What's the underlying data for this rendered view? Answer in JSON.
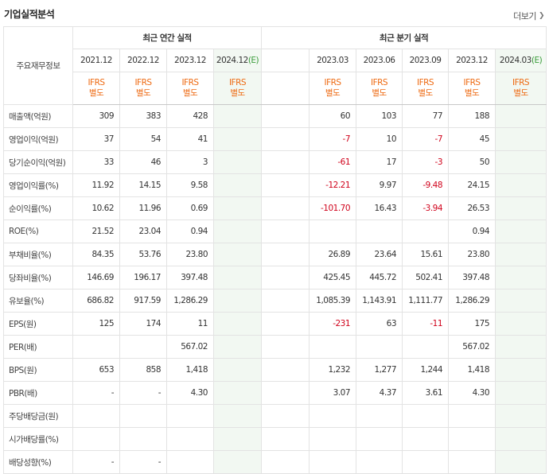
{
  "title": "기업실적분석",
  "more_label": "더보기",
  "header": {
    "row_label": "주요재무정보",
    "annual_group": "최근 연간 실적",
    "quarter_group": "최근 분기 실적",
    "annual_periods": [
      "2021.12",
      "2022.12",
      "2023.12",
      "2024.12"
    ],
    "annual_est_mark": "(E)",
    "quarter_periods": [
      "2023.03",
      "2023.06",
      "2023.09",
      "2023.12",
      "2024.03"
    ],
    "quarter_est_mark": "(E)",
    "std_line1": "IFRS",
    "std_line2": "별도"
  },
  "rows": [
    {
      "label": "매출액(억원)",
      "annual": [
        "309",
        "383",
        "428",
        ""
      ],
      "quarter": [
        "60",
        "103",
        "77",
        "188",
        ""
      ]
    },
    {
      "label": "영업이익(억원)",
      "annual": [
        "37",
        "54",
        "41",
        ""
      ],
      "quarter": [
        "-7",
        "10",
        "-7",
        "45",
        ""
      ]
    },
    {
      "label": "당기순이익(억원)",
      "annual": [
        "33",
        "46",
        "3",
        ""
      ],
      "quarter": [
        "-61",
        "17",
        "-3",
        "50",
        ""
      ]
    },
    {
      "label": "영업이익률(%)",
      "annual": [
        "11.92",
        "14.15",
        "9.58",
        ""
      ],
      "quarter": [
        "-12.21",
        "9.97",
        "-9.48",
        "24.15",
        ""
      ]
    },
    {
      "label": "순이익률(%)",
      "annual": [
        "10.62",
        "11.96",
        "0.69",
        ""
      ],
      "quarter": [
        "-101.70",
        "16.43",
        "-3.94",
        "26.53",
        ""
      ]
    },
    {
      "label": "ROE(%)",
      "annual": [
        "21.52",
        "23.04",
        "0.94",
        ""
      ],
      "quarter": [
        "",
        "",
        "",
        "0.94",
        ""
      ]
    },
    {
      "label": "부채비율(%)",
      "annual": [
        "84.35",
        "53.76",
        "23.80",
        ""
      ],
      "quarter": [
        "26.89",
        "23.64",
        "15.61",
        "23.80",
        ""
      ]
    },
    {
      "label": "당좌비율(%)",
      "annual": [
        "146.69",
        "196.17",
        "397.48",
        ""
      ],
      "quarter": [
        "425.45",
        "445.72",
        "502.41",
        "397.48",
        ""
      ]
    },
    {
      "label": "유보율(%)",
      "annual": [
        "686.82",
        "917.59",
        "1,286.29",
        ""
      ],
      "quarter": [
        "1,085.39",
        "1,143.91",
        "1,111.77",
        "1,286.29",
        ""
      ]
    },
    {
      "label": "EPS(원)",
      "annual": [
        "125",
        "174",
        "11",
        ""
      ],
      "quarter": [
        "-231",
        "63",
        "-11",
        "175",
        ""
      ]
    },
    {
      "label": "PER(배)",
      "annual": [
        "",
        "",
        "567.02",
        ""
      ],
      "quarter": [
        "",
        "",
        "",
        "567.02",
        ""
      ]
    },
    {
      "label": "BPS(원)",
      "annual": [
        "653",
        "858",
        "1,418",
        ""
      ],
      "quarter": [
        "1,232",
        "1,277",
        "1,244",
        "1,418",
        ""
      ]
    },
    {
      "label": "PBR(배)",
      "annual": [
        "-",
        "-",
        "4.30",
        ""
      ],
      "quarter": [
        "3.07",
        "4.37",
        "3.61",
        "4.30",
        ""
      ]
    },
    {
      "label": "주당배당금(원)",
      "annual": [
        "",
        "",
        "",
        ""
      ],
      "quarter": [
        "",
        "",
        "",
        "",
        ""
      ]
    },
    {
      "label": "시가배당률(%)",
      "annual": [
        "",
        "",
        "",
        ""
      ],
      "quarter": [
        "",
        "",
        "",
        "",
        ""
      ]
    },
    {
      "label": "배당성향(%)",
      "annual": [
        "-",
        "-",
        "",
        ""
      ],
      "quarter": [
        "",
        "",
        "",
        "",
        ""
      ]
    }
  ]
}
